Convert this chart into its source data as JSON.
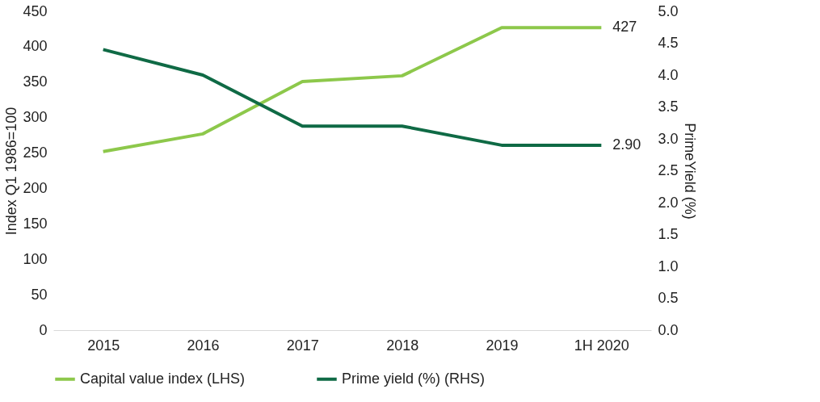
{
  "chart_data": {
    "type": "line",
    "categories": [
      "2015",
      "2016",
      "2017",
      "2018",
      "2019",
      "1H 2020"
    ],
    "series": [
      {
        "name": "Capital value index (LHS)",
        "color": "#8dc84b",
        "values": [
          252,
          277,
          351,
          359,
          427,
          427
        ],
        "value_labels": [
          null,
          null,
          null,
          null,
          null,
          "427"
        ]
      },
      {
        "name": "Prime yield (%) (RHS)",
        "color": "#0f6a45",
        "axis": "y2",
        "values": [
          4.4,
          4.0,
          3.2,
          3.2,
          2.9,
          2.9
        ],
        "value_labels": [
          null,
          null,
          null,
          null,
          null,
          "2.90"
        ]
      }
    ],
    "ylabel": "Index Q1 1986=100",
    "y2label": "PrimeYield (%)",
    "ylim": [
      0,
      450
    ],
    "yticks": [
      0,
      50,
      100,
      150,
      200,
      250,
      300,
      350,
      400,
      450
    ],
    "y2lim": [
      0,
      5
    ],
    "y2ticks": [
      {
        "value": 0,
        "label": "0.0"
      },
      {
        "value": 0.5,
        "label": "0.5"
      },
      {
        "value": 1,
        "label": "1.0"
      },
      {
        "value": 1.5,
        "label": "1.5"
      },
      {
        "value": 2,
        "label": "2.0"
      },
      {
        "value": 2.5,
        "label": "2.5"
      },
      {
        "value": 3,
        "label": "3.0"
      },
      {
        "value": 3.5,
        "label": "3.5"
      },
      {
        "value": 4,
        "label": "4.0"
      },
      {
        "value": 4.5,
        "label": "4.5"
      },
      {
        "value": 5,
        "label": "5.0"
      }
    ],
    "grid": false,
    "legend": "bottom",
    "marker": "none",
    "line_style": "solid"
  }
}
